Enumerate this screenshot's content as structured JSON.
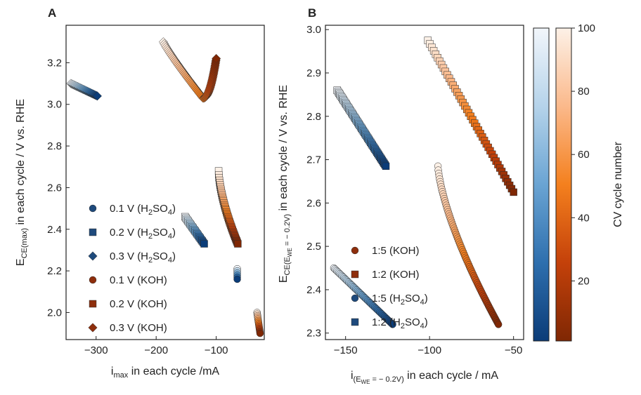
{
  "panel_a": {
    "letter": "A",
    "xlabel_main": "i",
    "xlabel_sub": "max",
    "xlabel_rest": " in each cycle /mA",
    "ylabel_main": "E",
    "ylabel_sub": "CE(max)",
    "ylabel_rest": " in each cycle / V vs. RHE",
    "legend": [
      {
        "prefix": "0.1 V (H",
        "sub": "2",
        "mid": "SO",
        "sub2": "4",
        "suffix": ")",
        "marker": "circle",
        "color": "#1e4a7c"
      },
      {
        "prefix": "0.2 V (H",
        "sub": "2",
        "mid": "SO",
        "sub2": "4",
        "suffix": ")",
        "marker": "square",
        "color": "#1e4a7c"
      },
      {
        "prefix": "0.3 V (H",
        "sub": "2",
        "mid": "SO",
        "sub2": "4",
        "suffix": ")",
        "marker": "diamond",
        "color": "#1e4a7c"
      },
      {
        "prefix": "0.1 V (KOH)",
        "sub": "",
        "mid": "",
        "sub2": "",
        "suffix": "",
        "marker": "circle",
        "color": "#8e2e0c"
      },
      {
        "prefix": "0.2 V (KOH)",
        "sub": "",
        "mid": "",
        "sub2": "",
        "suffix": "",
        "marker": "square",
        "color": "#8e2e0c"
      },
      {
        "prefix": "0.3 V (KOH)",
        "sub": "",
        "mid": "",
        "sub2": "",
        "suffix": "",
        "marker": "diamond",
        "color": "#8e2e0c"
      }
    ]
  },
  "panel_b": {
    "letter": "B",
    "xlabel_main": "i",
    "xlabel_sub": "(E",
    "xlabel_subsub": "WE",
    "xlabel_subrest": " = − 0.2V)",
    "xlabel_rest": " in each cycle / mA",
    "ylabel_main": "E",
    "ylabel_sub": "CE(E",
    "ylabel_subsub": "WE",
    "ylabel_subrest": " = − 0.2V)",
    "ylabel_rest": " in each cycle / V vs. RHE",
    "legend": [
      {
        "prefix": "1:5 (KOH)",
        "sub": "",
        "mid": "",
        "sub2": "",
        "suffix": "",
        "marker": "circle",
        "color": "#8e2e0c"
      },
      {
        "prefix": "1:2 (KOH)",
        "sub": "",
        "mid": "",
        "sub2": "",
        "suffix": "",
        "marker": "square",
        "color": "#8e2e0c"
      },
      {
        "prefix": "1:5 (H",
        "sub": "2",
        "mid": "SO",
        "sub2": "4",
        "suffix": ")",
        "marker": "circle",
        "color": "#1e4a7c"
      },
      {
        "prefix": "1:2 (H",
        "sub": "2",
        "mid": "SO",
        "sub2": "4",
        "suffix": ")",
        "marker": "square",
        "color": "#1e4a7c"
      }
    ]
  },
  "colorbar": {
    "label": "CV cycle number",
    "ticks": [
      "20",
      "40",
      "60",
      "80",
      "100"
    ],
    "range": [
      1,
      100
    ],
    "blues_colormap": [
      "#0b3c78",
      "#2e6fae",
      "#6aa4d3",
      "#b5d3ea",
      "#f2f6fb"
    ],
    "oranges_colormap": [
      "#7f2704",
      "#c4410a",
      "#f4801e",
      "#fbb98b",
      "#fdf1e7"
    ]
  },
  "chart_data": [
    {
      "type": "scatter",
      "panel": "A",
      "xlim": [
        -350,
        -20
      ],
      "ylim": [
        1.87,
        3.38
      ],
      "xticks": [
        -300,
        -200,
        -100
      ],
      "yticks": [
        2.0,
        2.2,
        2.4,
        2.6,
        2.8,
        3.0,
        3.2
      ],
      "xtick_labels": [
        "−300",
        "−200",
        "−100"
      ],
      "ytick_labels": [
        "2.0",
        "2.2",
        "2.4",
        "2.6",
        "2.8",
        "3.0",
        "3.2"
      ],
      "series": [
        {
          "name": "0.1 V (H2SO4)",
          "marker": "circle",
          "colormap": "blues",
          "x_start": -65,
          "x_end": -65,
          "y_start": 2.21,
          "y_end": 2.16,
          "n": 6,
          "curve": 0
        },
        {
          "name": "0.2 V (H2SO4)",
          "marker": "square",
          "colormap": "blues",
          "x_start": -152,
          "x_end": -120,
          "y_start": 2.46,
          "y_end": 2.33,
          "n": 20,
          "curve": 0
        },
        {
          "name": "0.3 V (H2SO4)",
          "marker": "diamond",
          "colormap": "blues",
          "x_start": -342,
          "x_end": -298,
          "y_start": 3.1,
          "y_end": 3.04,
          "n": 30,
          "curve": 0
        },
        {
          "name": "0.1 V (KOH)",
          "marker": "circle",
          "colormap": "oranges",
          "x_start": -32,
          "x_end": -27,
          "y_start": 2.0,
          "y_end": 1.9,
          "n": 14,
          "curve": 0
        },
        {
          "name": "0.2 V (KOH)",
          "marker": "square",
          "colormap": "oranges",
          "x_start": -96,
          "x_end": -64,
          "y_start": 2.68,
          "y_end": 2.33,
          "n": 40,
          "curve": 0.25
        },
        {
          "name": "0.3 V (KOH)",
          "marker": "diamond",
          "colormap": "oranges",
          "points_mode": "v",
          "x_start": -188,
          "x_min": -122,
          "x_end": -100,
          "y_start": 3.3,
          "y_min": 3.03,
          "y_end": 3.22,
          "n": 80
        }
      ]
    },
    {
      "type": "scatter",
      "panel": "B",
      "xlim": [
        -162,
        -44
      ],
      "ylim": [
        2.285,
        3.01
      ],
      "xticks": [
        -150,
        -100,
        -50
      ],
      "yticks": [
        2.3,
        2.4,
        2.5,
        2.6,
        2.7,
        2.8,
        2.9,
        3.0
      ],
      "xtick_labels": [
        "−150",
        "−100",
        "−50"
      ],
      "ytick_labels": [
        "2.3",
        "2.4",
        "2.5",
        "2.6",
        "2.7",
        "2.8",
        "2.9",
        "3.0"
      ],
      "series": [
        {
          "name": "1:5 (KOH)",
          "marker": "circle",
          "colormap": "oranges",
          "x_start": -95,
          "x_end": -59,
          "y_start": 2.685,
          "y_end": 2.32,
          "n": 80,
          "curve": 0.2
        },
        {
          "name": "1:2 (KOH)",
          "marker": "square",
          "colormap": "oranges",
          "x_start": -101,
          "x_end": -50,
          "y_start": 2.975,
          "y_end": 2.625,
          "n": 45,
          "curve": 0
        },
        {
          "name": "1:5 (H2SO4)",
          "marker": "circle",
          "colormap": "blues",
          "x_start": -157,
          "x_end": -122,
          "y_start": 2.45,
          "y_end": 2.32,
          "n": 60,
          "curve": 0
        },
        {
          "name": "1:2 (H2SO4)",
          "marker": "square",
          "colormap": "blues",
          "x_start": -155,
          "x_end": -126,
          "y_start": 2.86,
          "y_end": 2.685,
          "n": 55,
          "curve": 0
        }
      ]
    }
  ]
}
